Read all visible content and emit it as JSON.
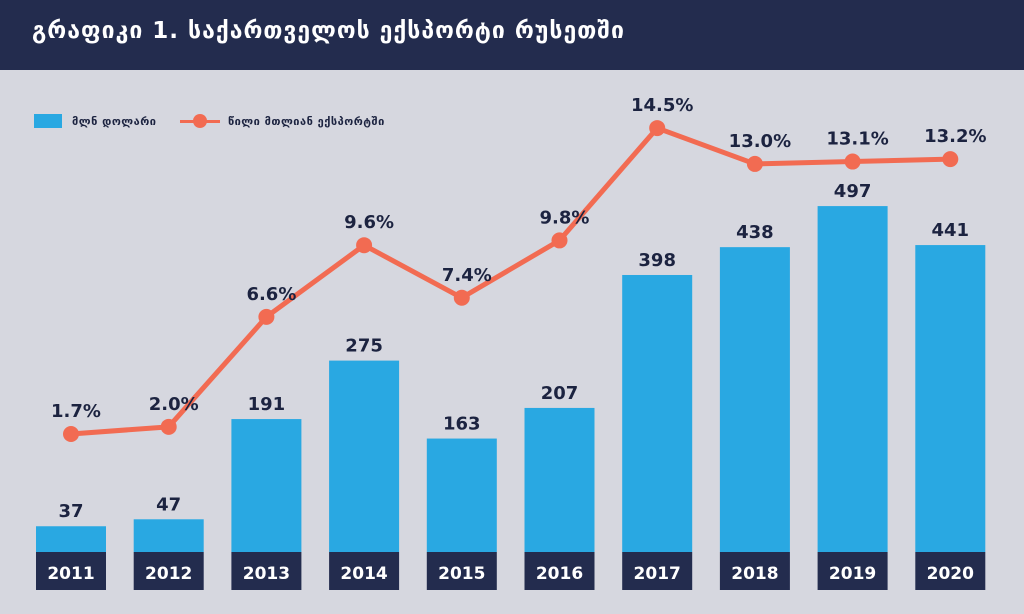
{
  "header": {
    "title": "გრაფიკი 1. საქართველოს ექსპორტი რუსეთში"
  },
  "legend": {
    "bars_label": "მლნ დოლარი",
    "line_label": "წილი მთლიან ექსპორტში"
  },
  "colors": {
    "header_bg": "#232c4e",
    "background": "#d6d7df",
    "bar": "#29a8e2",
    "line": "#f26b52",
    "year_box": "#232c4e",
    "text": "#1c2340"
  },
  "chart_data": {
    "type": "bar",
    "categories": [
      "2011",
      "2012",
      "2013",
      "2014",
      "2015",
      "2016",
      "2017",
      "2018",
      "2019",
      "2020"
    ],
    "series": [
      {
        "name": "მლნ დოლარი",
        "type": "bar",
        "values": [
          37,
          47,
          191,
          275,
          163,
          207,
          398,
          438,
          497,
          441
        ],
        "labels": [
          "37",
          "47",
          "191",
          "275",
          "163",
          "207",
          "398",
          "438",
          "497",
          "441"
        ]
      },
      {
        "name": "წილი მთლიან ექსპორტში",
        "type": "line",
        "values": [
          1.7,
          2.0,
          6.6,
          9.6,
          7.4,
          9.8,
          14.5,
          13.0,
          13.1,
          13.2
        ],
        "labels": [
          "1.7%",
          "2.0%",
          "6.6%",
          "9.6%",
          "7.4%",
          "9.8%",
          "14.5%",
          "13.0%",
          "13.1%",
          "13.2%"
        ]
      }
    ],
    "legend_position": "top-left",
    "grid": false
  }
}
